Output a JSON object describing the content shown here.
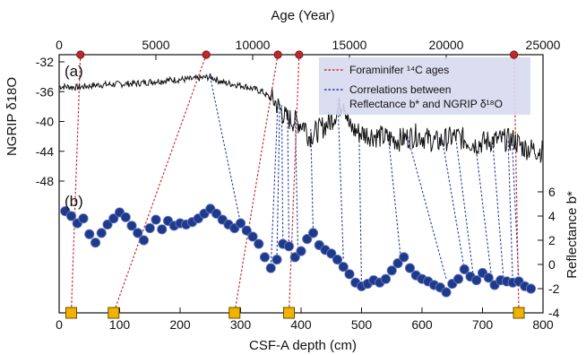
{
  "chart_data": {
    "type": "scatter",
    "axes": {
      "top_x": {
        "label": "Age (Year)",
        "range": [
          0,
          25000
        ],
        "ticks": [
          0,
          5000,
          10000,
          15000,
          20000,
          25000
        ]
      },
      "bottom_x": {
        "label": "CSF-A depth (cm)",
        "range": [
          0,
          800
        ],
        "ticks": [
          0,
          100,
          200,
          300,
          400,
          500,
          600,
          700,
          800
        ]
      },
      "left_y": {
        "label": "NGRIP δ18O",
        "range": [
          -50,
          -31
        ],
        "ticks": [
          -32,
          -36,
          -40,
          -44,
          -48
        ],
        "tick_labels": [
          "-32",
          "-36",
          "-40",
          "-44",
          "-48"
        ]
      },
      "right_y": {
        "label": "Reflectance b*",
        "range": [
          -4,
          6
        ],
        "ticks": [
          -4,
          -2,
          0,
          2,
          4,
          6
        ],
        "tick_labels": [
          "-4",
          "-2",
          "0",
          "2",
          "4",
          "6"
        ]
      }
    },
    "panels": {
      "a": "(a)",
      "b": "(b)"
    },
    "legend": {
      "position": "top-right",
      "entries": [
        {
          "label": "Foraminifer ¹⁴C ages",
          "color": "#c8302f",
          "style": "dotted"
        },
        {
          "label": "Correlations between",
          "label2": "Reflectance b* and NGRIP δ¹⁸O",
          "color": "#2a3f9a",
          "style": "dotted"
        }
      ]
    },
    "ngrip_series": {
      "name": "NGRIP δ18O",
      "color": "#111111",
      "x_axis": "Age (Year)",
      "x": [
        0,
        1000,
        2000,
        3000,
        4000,
        5000,
        6000,
        7000,
        7800,
        8500,
        9500,
        10500,
        11200,
        11700,
        12200,
        12700,
        12900,
        13400,
        14000,
        14400,
        14700,
        15000,
        15500,
        16500,
        17500,
        18500,
        19500,
        20500,
        21500,
        22500,
        23500,
        24000,
        25000
      ],
      "y": [
        -35.3,
        -35.4,
        -35.1,
        -35.0,
        -34.9,
        -34.6,
        -34.4,
        -34.3,
        -34.0,
        -34.8,
        -35.2,
        -36.0,
        -37.5,
        -39.5,
        -40.0,
        -40.5,
        -42.0,
        -41.2,
        -40.0,
        -38.5,
        -37.0,
        -40.8,
        -41.5,
        -42.0,
        -42.5,
        -41.8,
        -42.8,
        -42.0,
        -43.0,
        -42.5,
        -42.5,
        -43.5,
        -44.0
      ]
    },
    "reflectance_series": {
      "name": "Reflectance b*",
      "color": "#1f3a8a",
      "x_axis": "CSF-A depth (cm)",
      "x": [
        10,
        20,
        30,
        40,
        50,
        60,
        70,
        80,
        90,
        100,
        110,
        120,
        130,
        140,
        150,
        160,
        170,
        180,
        190,
        200,
        210,
        220,
        230,
        240,
        250,
        260,
        270,
        280,
        290,
        300,
        310,
        320,
        330,
        340,
        350,
        360,
        370,
        380,
        390,
        400,
        410,
        420,
        430,
        440,
        450,
        460,
        470,
        480,
        490,
        500,
        510,
        520,
        530,
        540,
        550,
        560,
        570,
        580,
        590,
        600,
        610,
        620,
        630,
        640,
        650,
        660,
        670,
        680,
        690,
        700,
        710,
        720,
        730,
        740,
        750,
        760,
        770,
        780
      ],
      "y": [
        4.4,
        4.0,
        3.4,
        3.8,
        2.5,
        1.8,
        2.6,
        3.3,
        3.8,
        4.3,
        3.9,
        3.2,
        2.6,
        2.0,
        3.0,
        3.7,
        2.9,
        3.6,
        3.2,
        3.4,
        3.3,
        3.5,
        3.8,
        4.2,
        4.6,
        4.2,
        3.7,
        3.3,
        3.0,
        3.4,
        2.8,
        2.3,
        1.7,
        0.6,
        -0.3,
        0.4,
        1.7,
        1.5,
        0.6,
        1.1,
        2.1,
        2.6,
        1.6,
        1.2,
        0.9,
        0.4,
        -0.2,
        -0.8,
        -1.5,
        -1.8,
        -1.6,
        -1.3,
        -1.5,
        -1.2,
        -0.5,
        0.1,
        0.6,
        -0.3,
        -0.9,
        -1.2,
        -1.4,
        -1.7,
        -1.9,
        -2.3,
        -1.6,
        -1.2,
        -0.4,
        -1.0,
        -1.3,
        -0.7,
        -1.1,
        -1.7,
        -1.3,
        -1.4,
        -1.5,
        -1.4,
        -1.8,
        -2.0
      ]
    },
    "c14_ties": {
      "color": "#c8302f",
      "style": "dotted",
      "age": [
        1100,
        7600,
        11300,
        12400,
        23500
      ],
      "depth": [
        20,
        90,
        290,
        380,
        760
      ]
    },
    "correlation_ties": {
      "color": "#2a3f9a",
      "style": "dotted",
      "age": [
        7800,
        11300,
        11400,
        11500,
        11800,
        12200,
        13000,
        14400,
        15500,
        17000,
        18000,
        19800,
        20500,
        21500,
        22400,
        23200,
        23400
      ],
      "age_ngrip": [
        -34.0,
        -37.5,
        -37.6,
        -37.8,
        -38.5,
        -39.5,
        -41.0,
        -37.0,
        -41.5,
        -41.8,
        -42.0,
        -42.5,
        -42.3,
        -42.8,
        -42.8,
        -42.6,
        -42.5
      ],
      "depth": [
        300,
        350,
        360,
        370,
        380,
        395,
        420,
        470,
        500,
        565,
        640,
        670,
        685,
        715,
        735,
        750,
        760
      ],
      "refl": [
        3.4,
        -0.3,
        0.4,
        1.7,
        1.5,
        0.8,
        2.6,
        0.4,
        -1.8,
        0.4,
        -1.2,
        -0.4,
        -1.0,
        -1.1,
        -1.3,
        -1.5,
        -1.4
      ]
    },
    "markers": {
      "top_age": [
        1100,
        7600,
        11300,
        12400,
        23500
      ],
      "top_color": "#c0282a",
      "bottom_depth": [
        20,
        90,
        290,
        380,
        760
      ],
      "bottom_color": "#f0b400"
    }
  }
}
